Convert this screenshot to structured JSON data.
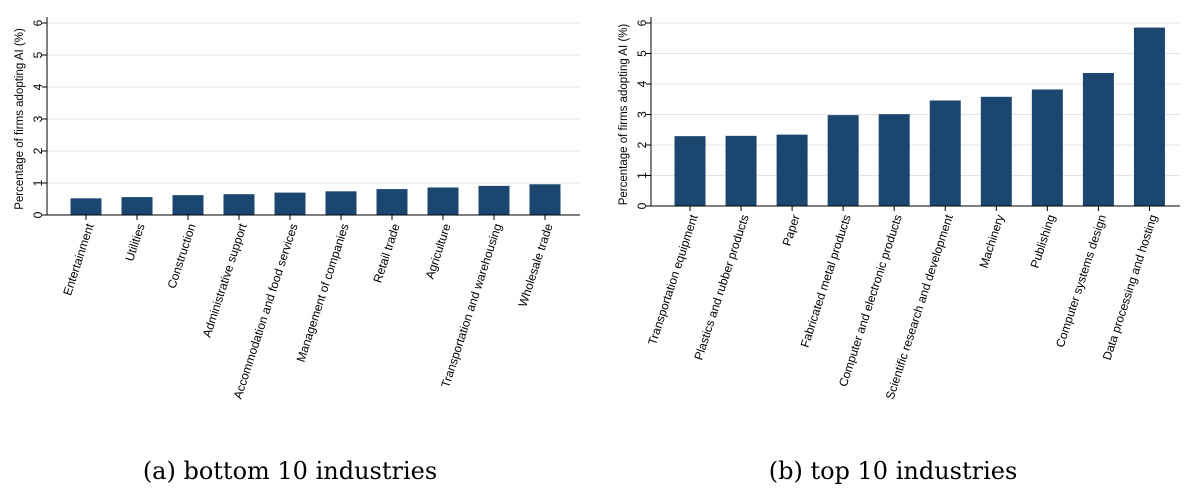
{
  "colors": {
    "bar": "#1b4670",
    "grid": "#e4e4e4",
    "axis": "#000000"
  },
  "chart_data": [
    {
      "type": "bar",
      "caption": "(a) bottom 10 industries",
      "ylabel": "Percentage of firms adopting AI (%)",
      "ylim": [
        0,
        6
      ],
      "yticks": [
        0,
        1,
        2,
        3,
        4,
        5,
        6
      ],
      "grid": true,
      "categories": [
        "Entertainment",
        "Utilities",
        "Construction",
        "Administrative support",
        "Accommodation and food services",
        "Management of companies",
        "Retail trade",
        "Agriculture",
        "Transportation and warehousing",
        "Wholesale trade"
      ],
      "values": [
        0.52,
        0.56,
        0.62,
        0.65,
        0.7,
        0.74,
        0.81,
        0.86,
        0.91,
        0.96
      ]
    },
    {
      "type": "bar",
      "caption": "(b) top 10 industries",
      "ylabel": "Percentage of firms adopting AI (%)",
      "ylim": [
        0,
        6
      ],
      "yticks": [
        0,
        1,
        2,
        3,
        4,
        5,
        6
      ],
      "grid": true,
      "categories": [
        "Transportation equipment",
        "Plastics and rubber products",
        "Paper",
        "Fabricated metal products",
        "Computer and electronic products",
        "Scientific research and development",
        "Machinery",
        "Publishing",
        "Computer systems design",
        "Data processing and hosting"
      ],
      "values": [
        2.29,
        2.3,
        2.34,
        2.98,
        3.01,
        3.46,
        3.58,
        3.82,
        4.36,
        5.85
      ]
    }
  ]
}
